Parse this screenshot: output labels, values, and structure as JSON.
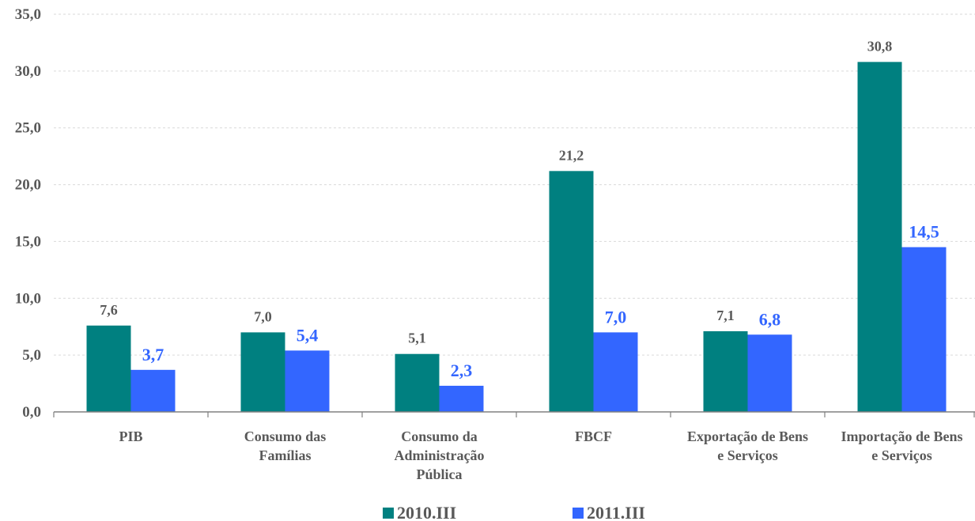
{
  "chart_data": {
    "type": "bar",
    "categories": [
      [
        "PIB"
      ],
      [
        "Consumo das",
        "Famílias"
      ],
      [
        "Consumo da",
        "Administração",
        "Pública"
      ],
      [
        "FBCF"
      ],
      [
        "Exportação de Bens",
        "e Serviços"
      ],
      [
        "Importação de Bens",
        "e Serviços"
      ]
    ],
    "series": [
      {
        "name": "2010.III",
        "color": "#008080",
        "values": [
          7.6,
          7.0,
          5.1,
          21.2,
          7.1,
          30.8
        ],
        "labels": [
          "7,6",
          "7,0",
          "5,1",
          "21,2",
          "7,1",
          "30,8"
        ]
      },
      {
        "name": "2011.III",
        "color": "#3366ff",
        "values": [
          3.7,
          5.4,
          2.3,
          7.0,
          6.8,
          14.5
        ],
        "labels": [
          "3,7",
          "5,4",
          "2,3",
          "7,0",
          "6,8",
          "14,5"
        ]
      }
    ],
    "yticks": [
      {
        "value": 0,
        "label": "0,0"
      },
      {
        "value": 5,
        "label": "5,0"
      },
      {
        "value": 10,
        "label": "10,0"
      },
      {
        "value": 15,
        "label": "15,0"
      },
      {
        "value": 20,
        "label": "20,0"
      },
      {
        "value": 25,
        "label": "25,0"
      },
      {
        "value": 30,
        "label": "30,0"
      },
      {
        "value": 35,
        "label": "35,0"
      }
    ],
    "ylim": [
      0,
      35
    ],
    "grid": true,
    "legend_position": "bottom-center",
    "title": "",
    "xlabel": "",
    "ylabel": ""
  }
}
